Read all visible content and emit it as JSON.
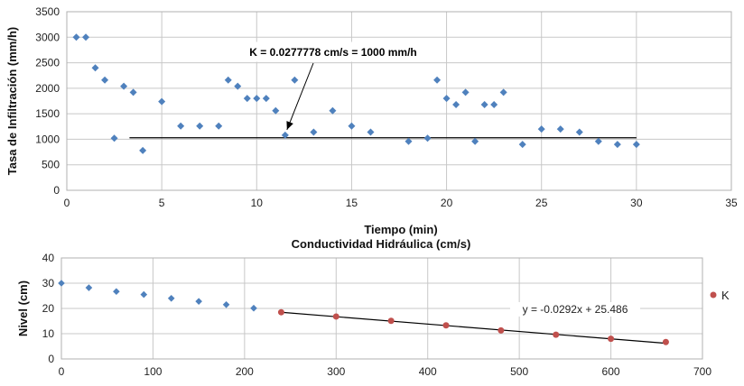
{
  "chart_data": [
    {
      "type": "scatter",
      "title": "",
      "xlabel": "Tiempo (min)",
      "ylabel": "Tasa de Infiltración (mm/h)",
      "xlim": [
        0,
        35
      ],
      "ylim": [
        0,
        3500
      ],
      "xticks": [
        "0",
        "5",
        "10",
        "15",
        "20",
        "25",
        "30",
        "35"
      ],
      "yticks": [
        "0",
        "500",
        "1000",
        "1500",
        "2000",
        "2500",
        "3000",
        "3500"
      ],
      "grid": true,
      "marker_color": "#4f81bd",
      "series": [
        {
          "x": [
            0.5,
            1,
            1.5,
            2,
            2.5,
            3,
            3.5,
            4,
            5,
            6,
            7,
            8,
            8.5,
            9,
            9.5,
            10,
            10.5,
            11,
            11.5,
            12,
            13,
            14,
            15,
            16,
            18,
            19,
            19.5,
            20,
            20.5,
            21,
            21.5,
            22,
            22.5,
            23,
            24,
            25,
            26,
            27,
            28,
            29,
            30
          ],
          "y": [
            3000,
            3000,
            2400,
            2160,
            1020,
            2040,
            1920,
            780,
            1740,
            1260,
            1260,
            1260,
            2160,
            2040,
            1800,
            1800,
            1800,
            1560,
            1080,
            2160,
            1140,
            1560,
            1260,
            1140,
            960,
            1020,
            2160,
            1800,
            1680,
            1920,
            960,
            1680,
            1680,
            1920,
            900,
            1200,
            1200,
            1140,
            960,
            900,
            900
          ]
        }
      ],
      "reference_line": {
        "y": 1030,
        "x_from": 3.3,
        "x_to": 30
      },
      "annotation": {
        "text": "K = 0.0277778 cm/s = 1000 mm/h",
        "arrow_to": {
          "x": 11.5,
          "y": 1080
        }
      }
    },
    {
      "type": "scatter",
      "title": "Conductividad Hidráulica (cm/s)",
      "xlabel": "",
      "ylabel": "Nivel (cm)",
      "xlim": [
        0,
        700
      ],
      "ylim": [
        0,
        40
      ],
      "xticks": [
        "0",
        "100",
        "200",
        "300",
        "400",
        "500",
        "600",
        "700"
      ],
      "yticks": [
        "0",
        "10",
        "20",
        "30",
        "40"
      ],
      "grid": true,
      "legend_position": "right",
      "series": [
        {
          "name": "",
          "color": "#4f81bd",
          "marker": "diamond",
          "x": [
            0,
            30,
            60,
            90,
            120,
            150,
            180,
            210
          ],
          "y": [
            30,
            28.2,
            26.7,
            25.5,
            24,
            22.8,
            21.5,
            20.1
          ]
        },
        {
          "name": "K",
          "color": "#c0504d",
          "marker": "circle",
          "x": [
            240,
            300,
            360,
            420,
            480,
            540,
            600,
            660
          ],
          "y": [
            18.5,
            16.8,
            15.1,
            13.3,
            11.3,
            9.6,
            8.0,
            6.7
          ]
        }
      ],
      "trendline": {
        "slope": -0.0292,
        "intercept": 25.486,
        "x_from": 240,
        "x_to": 660
      },
      "equation_label": "y = -0.0292x + 25.486"
    }
  ]
}
